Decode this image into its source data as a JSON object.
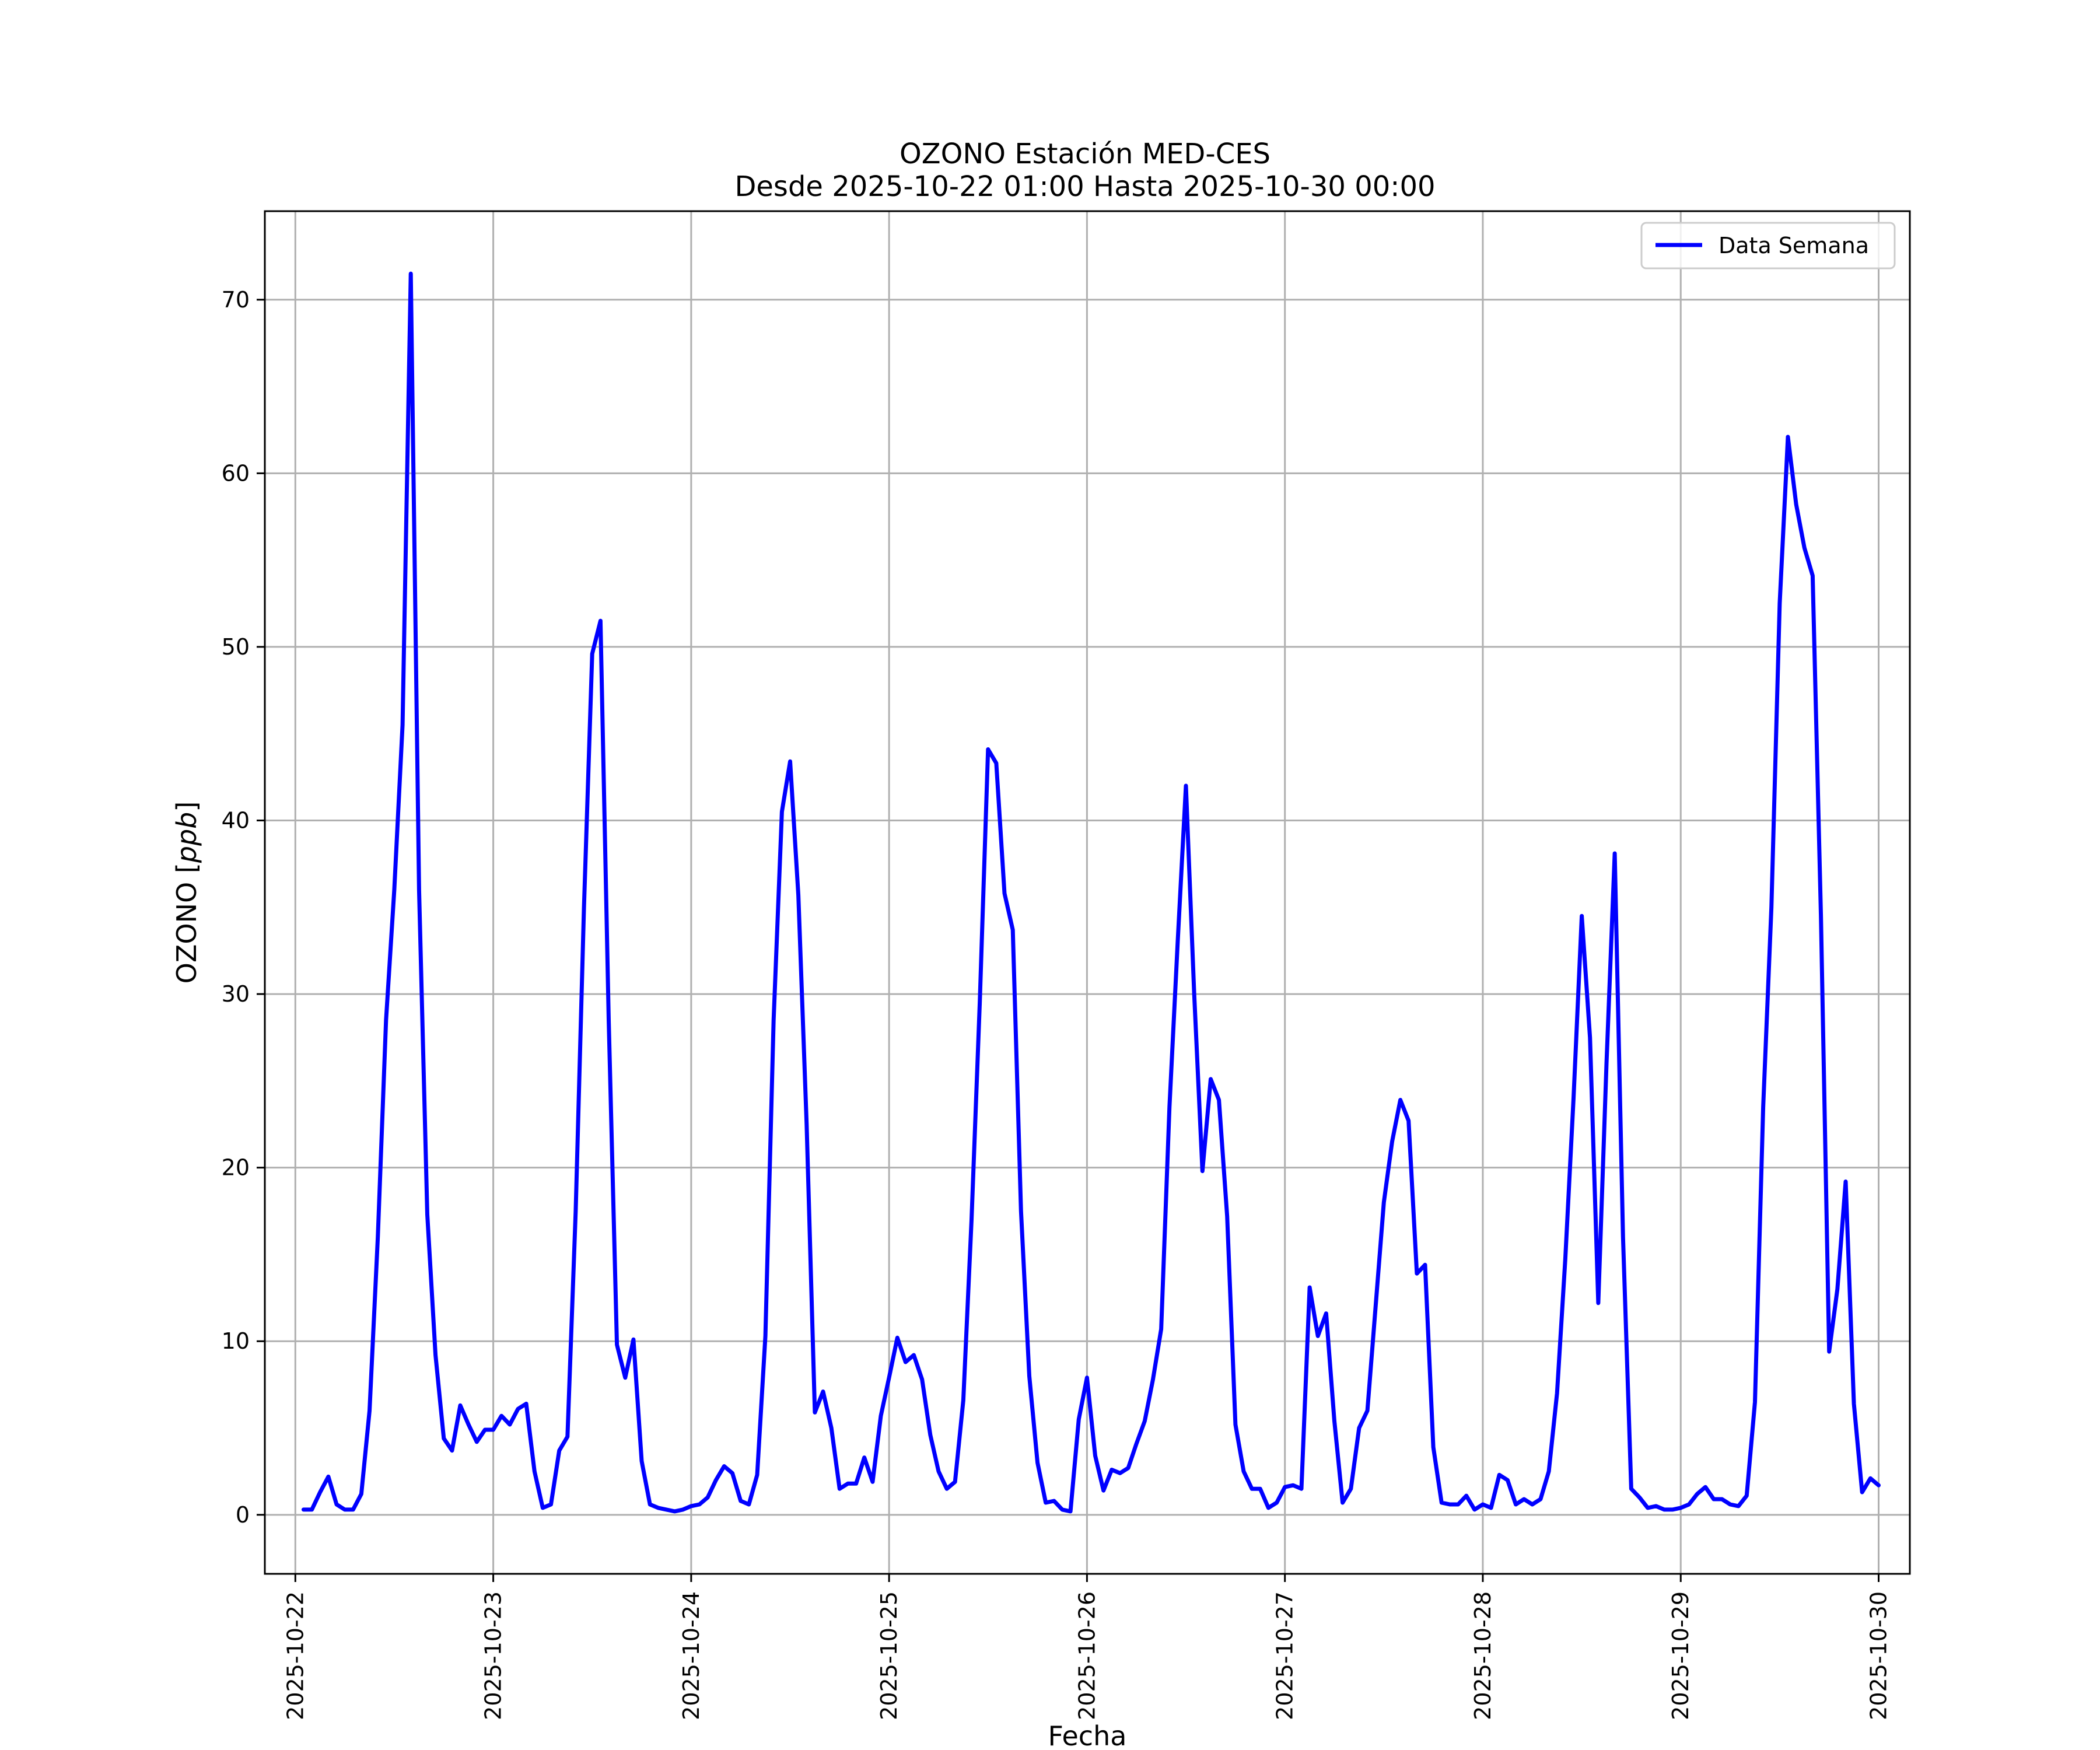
{
  "chart_data": {
    "type": "line",
    "title": "OZONO Estación MED-CES",
    "subtitle": "Desde 2025-10-22 01:00 Hasta 2025-10-30 00:00",
    "xlabel": "Fecha",
    "ylabel": "OZONO [ppb]",
    "ylabel_main": "OZONO [",
    "ylabel_unit": "ppb",
    "ylabel_close": "]",
    "x_ticks": [
      "2025-10-22",
      "2025-10-23",
      "2025-10-24",
      "2025-10-25",
      "2025-10-26",
      "2025-10-27",
      "2025-10-28",
      "2025-10-29",
      "2025-10-30"
    ],
    "y_ticks": [
      "0",
      "10",
      "20",
      "30",
      "40",
      "50",
      "60",
      "70"
    ],
    "xlim": [
      "2025-10-21 20:18",
      "2025-10-30 03:47"
    ],
    "ylim": [
      -3.4,
      75.1
    ],
    "grid": true,
    "legend_position": "top-right",
    "x_start": "2025-10-22 01:00",
    "x_step_hours": 1,
    "series": [
      {
        "name": "Data Semana",
        "color": "#0000ff",
        "values": [
          0.3,
          0.3,
          1.3,
          2.2,
          0.6,
          0.3,
          0.3,
          1.2,
          6.0,
          16.0,
          28.5,
          36.0,
          45.5,
          71.5,
          36.0,
          17.3,
          9.2,
          4.4,
          3.7,
          6.3,
          5.2,
          4.2,
          4.9,
          4.9,
          5.7,
          5.2,
          6.1,
          6.4,
          2.5,
          0.4,
          0.6,
          3.7,
          4.5,
          17.5,
          35.0,
          49.6,
          51.5,
          28.5,
          9.8,
          7.9,
          10.1,
          3.1,
          0.6,
          0.4,
          0.3,
          0.2,
          0.3,
          0.5,
          0.6,
          1.0,
          2.0,
          2.8,
          2.4,
          0.8,
          0.6,
          2.3,
          10.3,
          28.5,
          40.5,
          43.4,
          35.7,
          22.5,
          5.9,
          7.1,
          5.0,
          1.5,
          1.8,
          1.8,
          3.3,
          1.9,
          5.7,
          7.9,
          10.2,
          8.8,
          9.2,
          7.8,
          4.6,
          2.5,
          1.5,
          1.9,
          6.6,
          17.0,
          29.5,
          44.1,
          43.3,
          35.8,
          33.7,
          17.5,
          8.0,
          3.0,
          0.7,
          0.8,
          0.3,
          0.2,
          5.5,
          7.9,
          3.4,
          1.4,
          2.6,
          2.4,
          2.7,
          4.1,
          5.4,
          7.8,
          10.7,
          23.5,
          33.0,
          42.0,
          30.0,
          19.8,
          25.1,
          23.9,
          17.2,
          5.2,
          2.5,
          1.5,
          1.5,
          0.4,
          0.7,
          1.6,
          1.7,
          1.5,
          13.1,
          10.3,
          11.6,
          5.4,
          0.7,
          1.5,
          5.0,
          6.0,
          12.0,
          18.0,
          21.5,
          23.9,
          22.7,
          13.9,
          14.4,
          3.9,
          0.7,
          0.6,
          0.6,
          1.1,
          0.3,
          0.6,
          0.4,
          2.3,
          2.0,
          0.6,
          0.9,
          0.6,
          0.9,
          2.5,
          7.0,
          14.7,
          24.0,
          34.5,
          27.5,
          12.2,
          26.0,
          38.1,
          16.0,
          1.5,
          1.0,
          0.4,
          0.5,
          0.3,
          0.3,
          0.4,
          0.6,
          1.2,
          1.6,
          0.9,
          0.9,
          0.6,
          0.5,
          1.1,
          6.5,
          23.5,
          35.0,
          52.5,
          62.1,
          58.2,
          55.7,
          54.1,
          34.5,
          9.4,
          13.0,
          19.2,
          6.4,
          1.3,
          2.1,
          1.7
        ]
      }
    ]
  }
}
